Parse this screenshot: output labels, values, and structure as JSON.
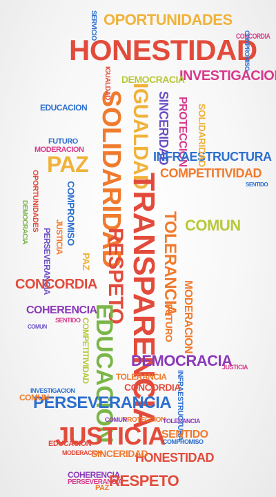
{
  "palette": {
    "orange": "#f07a2d",
    "red": "#e24b3b",
    "blue": "#2d6fcf",
    "purple": "#8a3ab9",
    "magenta": "#d63a8c",
    "green": "#7ab648",
    "lime": "#b7c83a",
    "yellow": "#f0b23a",
    "violet": "#6b4fc4",
    "grey": "#6e6e6e"
  },
  "words": [
    "OPORTUNIDADES",
    "HONESTIDAD",
    "CONCORDIA",
    "INVESTIGACION",
    "SERVICIO",
    "IGUALDAD",
    "SOLIDARIDAD",
    "TRANSPARENCIA",
    "RESPETO",
    "EDUCACION",
    "SINCERIDAD",
    "PROTECCION",
    "DEMOCRACIA",
    "INFRAESTRUCTURA",
    "COMPETITIVIDAD",
    "PAZ",
    "FUTURO",
    "MODERACION",
    "COMPROMISO",
    "JUSTICIA",
    "PERSEVERANCIA",
    "TOLERANCIA",
    "COMUN",
    "COHERENCIA",
    "SENTIDO",
    "CONCORDIA",
    "EDUCACION",
    "DEMOCRACIA",
    "PERSEVERANCIA",
    "JUSTICIA",
    "HONESTIDAD",
    "SENTIDO",
    "COHERENCIA",
    "PERSEVERANCIA",
    "PAZ",
    "RESPETO",
    "COMUN",
    "PROTECCION",
    "TOLERANCIA",
    "COMPROMISO",
    "SINCERIDAD",
    "INVESTIGACION",
    "IGUALDAD",
    "FUTURO",
    "TOLERANCIA",
    "MODERACION",
    "INFRAESTRUCTURA",
    "CONCORDIA",
    "DEMOCRACIA",
    "COMUN",
    "EDUCACION",
    "OPORTUNIDADES",
    "SOLIDARIDAD",
    "COMPETITIVIDAD",
    "COMUN",
    "SENTIDO",
    "MODERACION",
    "PAZ",
    "JUSTICIA",
    "COMPROMISO"
  ]
}
